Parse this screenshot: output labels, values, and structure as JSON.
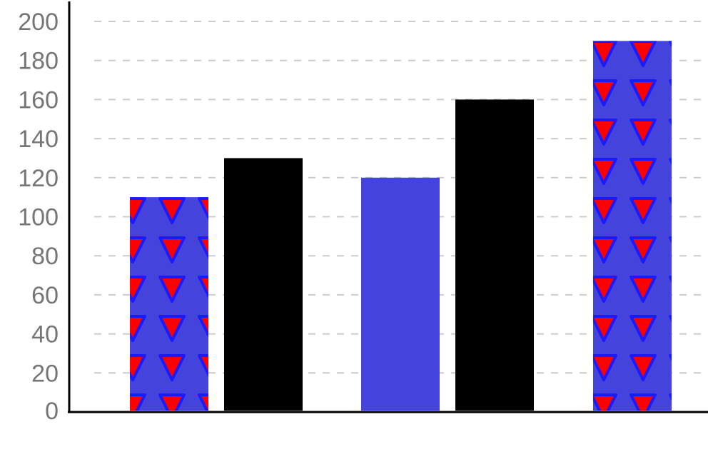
{
  "chart_data": {
    "type": "bar",
    "title": "",
    "xlabel": "",
    "ylabel": "",
    "ylim": [
      0,
      200
    ],
    "yticks": [
      0,
      20,
      40,
      60,
      80,
      100,
      120,
      140,
      160,
      180,
      200
    ],
    "grid": true,
    "legend": "none",
    "bars": [
      {
        "value": 110,
        "color": "#4444dd",
        "pattern": "red-triangles"
      },
      {
        "value": 130,
        "color": "#000000",
        "pattern": "none"
      },
      {
        "value": 120,
        "color": "#4444dd",
        "pattern": "none"
      },
      {
        "value": 160,
        "color": "#000000",
        "pattern": "none"
      },
      {
        "value": 190,
        "color": "#4444dd",
        "pattern": "red-triangles"
      }
    ]
  }
}
